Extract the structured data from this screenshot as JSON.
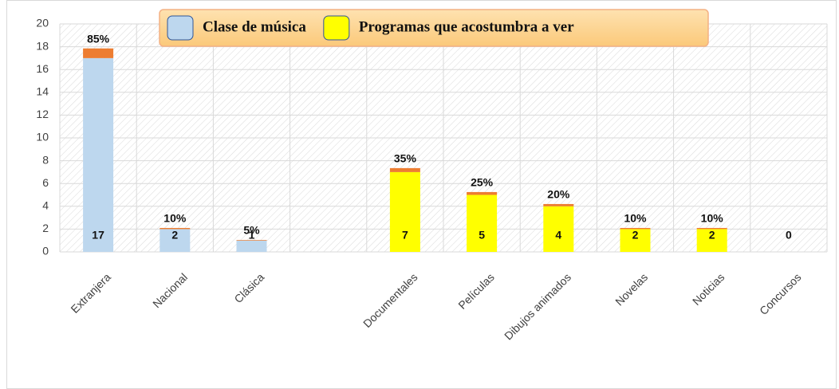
{
  "chart_data": {
    "type": "bar",
    "categories": [
      "Extranjera",
      "Nacional",
      "Clásica",
      null,
      "Documentales",
      "Películas",
      "Dibujos animados",
      "Novelas",
      "Noticias",
      "Concursos"
    ],
    "series": [
      {
        "name": "Clase de música",
        "color": "#bdd7ee",
        "values": [
          17,
          2,
          1,
          null,
          null,
          null,
          null,
          null,
          null,
          null
        ]
      },
      {
        "name": "Programas que acostumbra a ver",
        "color": "#ffff00",
        "values": [
          null,
          null,
          null,
          null,
          7,
          5,
          4,
          2,
          2,
          0
        ]
      },
      {
        "color": "#ed7d31",
        "values": [
          0.85,
          0.1,
          0.05,
          null,
          0.35,
          0.25,
          0.2,
          0.1,
          0.1,
          null
        ],
        "value_labels": [
          "85%",
          "10%",
          "5%",
          null,
          "35%",
          "25%",
          "20%",
          "10%",
          "10%",
          null
        ]
      }
    ],
    "ylim": [
      0,
      20
    ],
    "yticks": [
      0,
      2,
      4,
      6,
      8,
      10,
      12,
      14,
      16,
      18,
      20
    ],
    "grid": true,
    "legend": "top"
  }
}
